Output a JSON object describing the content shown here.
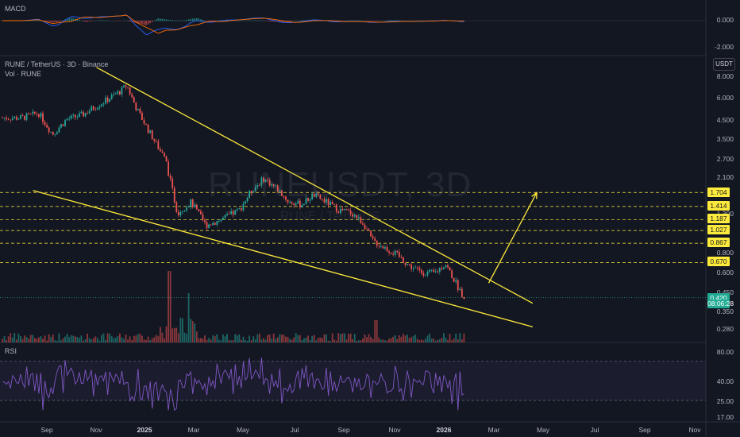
{
  "panes": {
    "macd_title": "MACD",
    "main_title": "RUNE / TetherUS · 3D · Binance",
    "volume_title": "Vol · RUNE",
    "rsi_title": "RSI",
    "currency": "USDT"
  },
  "watermark": {
    "symbol": "RUNEUSDT, 3D",
    "name": "RUNE / TetherUS"
  },
  "colors": {
    "background": "#131722",
    "up": "#26a69a",
    "down": "#ef5350",
    "pattern": "#ffeb3b",
    "rsi": "#7e57c2",
    "macd": "#2962ff",
    "signal": "#ff6d00"
  },
  "price_tags": [
    {
      "label": "1.704",
      "value": 1.704
    },
    {
      "label": "1.414",
      "value": 1.414
    },
    {
      "label": "1.187",
      "value": 1.187
    },
    {
      "label": "1.027",
      "value": 1.027
    },
    {
      "label": "0.867",
      "value": 0.867
    },
    {
      "label": "0.670",
      "value": 0.67
    }
  ],
  "current_price": {
    "price": "0.420",
    "countdown": "08:06:28"
  },
  "chart_data": [
    {
      "type": "line",
      "pane": "macd",
      "title": "MACD",
      "y_ticks": [
        "0.000",
        "-2.000"
      ],
      "y_tick_values": [
        0,
        -2
      ]
    },
    {
      "type": "candlestick",
      "pane": "price",
      "title": "RUNE / TetherUS · 3D · Binance",
      "y_scale": "log",
      "y_ticks": [
        "8.000",
        "6.000",
        "4.500",
        "3.500",
        "2.700",
        "2.100",
        "1.300",
        "0.800",
        "0.600",
        "0.450",
        "0.350",
        "0.280"
      ],
      "y_tick_values": [
        8,
        6,
        4.5,
        3.5,
        2.7,
        2.1,
        1.3,
        0.8,
        0.6,
        0.45,
        0.35,
        0.28
      ],
      "x_ticks": [
        "Sep",
        "Nov",
        "2025",
        "Mar",
        "May",
        "Jul",
        "Sep",
        "Nov",
        "2026",
        "Mar",
        "May",
        "Jul",
        "Sep",
        "Nov"
      ],
      "x_tick_dates": [
        "2024-09-01",
        "2024-11-01",
        "2025-01-01",
        "2025-03-01",
        "2025-05-01",
        "2025-07-01",
        "2025-09-01",
        "2025-11-01",
        "2026-01-01",
        "2026-03-01",
        "2026-05-01",
        "2026-07-01",
        "2026-09-01",
        "2026-11-01"
      ],
      "price_path": [
        [
          "2024-08-01",
          4.6
        ],
        [
          "2024-08-22",
          4.9
        ],
        [
          "2024-09-08",
          3.7
        ],
        [
          "2024-09-25",
          4.5
        ],
        [
          "2024-10-15",
          4.8
        ],
        [
          "2024-11-01",
          5.4
        ],
        [
          "2024-11-15",
          5.9
        ],
        [
          "2024-12-01",
          6.6
        ],
        [
          "2024-12-08",
          7.1
        ],
        [
          "2024-12-20",
          5.2
        ],
        [
          "2025-01-05",
          3.8
        ],
        [
          "2025-01-25",
          2.6
        ],
        [
          "2025-02-08",
          1.3
        ],
        [
          "2025-02-25",
          1.5
        ],
        [
          "2025-03-15",
          1.1
        ],
        [
          "2025-04-05",
          1.2
        ],
        [
          "2025-04-25",
          1.35
        ],
        [
          "2025-05-10",
          1.75
        ],
        [
          "2025-05-25",
          2.05
        ],
        [
          "2025-06-10",
          1.8
        ],
        [
          "2025-06-25",
          1.5
        ],
        [
          "2025-07-10",
          1.45
        ],
        [
          "2025-07-25",
          1.65
        ],
        [
          "2025-08-10",
          1.5
        ],
        [
          "2025-08-25",
          1.35
        ],
        [
          "2025-09-10",
          1.3
        ],
        [
          "2025-09-25",
          1.12
        ],
        [
          "2025-10-05",
          0.9
        ],
        [
          "2025-10-20",
          0.82
        ],
        [
          "2025-11-05",
          0.74
        ],
        [
          "2025-11-20",
          0.64
        ],
        [
          "2025-12-05",
          0.59
        ],
        [
          "2025-12-20",
          0.58
        ],
        [
          "2026-01-03",
          0.66
        ],
        [
          "2026-01-12",
          0.55
        ],
        [
          "2026-01-22",
          0.45
        ],
        [
          "2026-01-28",
          0.42
        ]
      ],
      "pattern": {
        "upper_line": {
          "from": [
            "2024-11-01",
            9.0
          ],
          "to": [
            "2026-04-20",
            0.39
          ]
        },
        "lower_line": {
          "from": [
            "2024-08-15",
            1.75
          ],
          "to": [
            "2026-04-20",
            0.285
          ]
        },
        "arrow": {
          "from": [
            "2026-02-25",
            0.51
          ],
          "to": [
            "2026-04-25",
            1.7
          ]
        }
      },
      "horizontal_levels": [
        1.704,
        1.414,
        1.187,
        1.027,
        0.867,
        0.67
      ]
    },
    {
      "type": "line",
      "pane": "rsi",
      "title": "RSI",
      "y_ticks": [
        "80.00",
        "40.00",
        "25.00",
        "17.00"
      ],
      "y_tick_values": [
        80,
        40,
        25,
        17
      ],
      "band": [
        30,
        70
      ]
    }
  ]
}
